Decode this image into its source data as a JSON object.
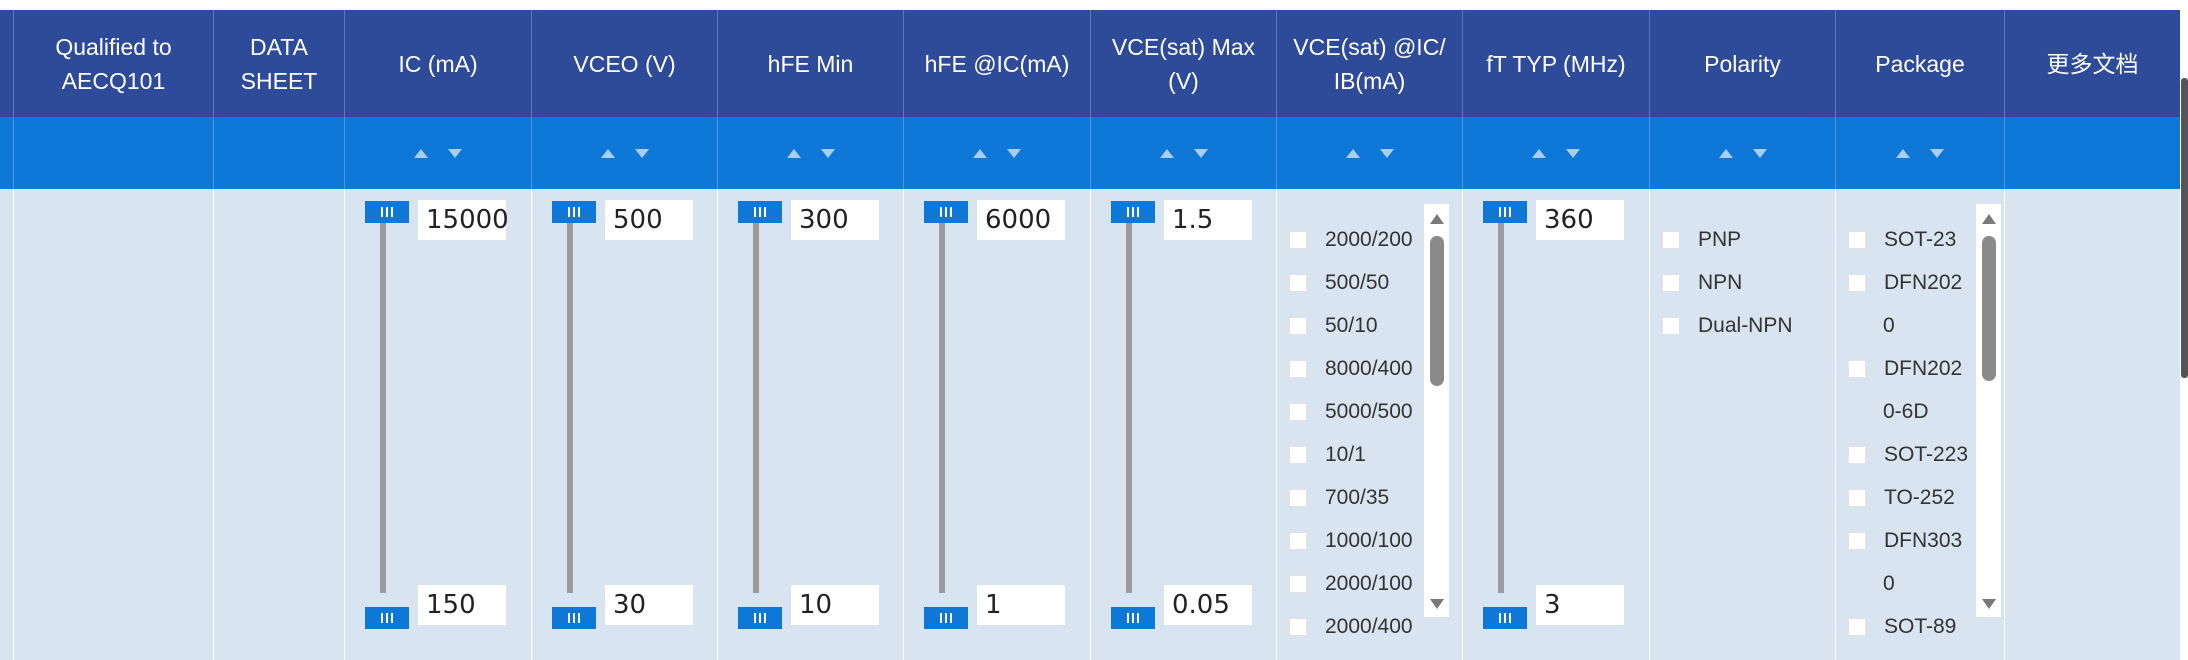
{
  "columns": {
    "qualified": "Qualified to\nAECQ101",
    "datasheet": "DATA\nSHEET",
    "ic": "IC (mA)",
    "vceo": "VCEO (V)",
    "hfe_min": "hFE Min",
    "hfe_ic": "hFE @IC(mA)",
    "vcesat_max": "VCE(sat) Max\n(V)",
    "vcesat_ic": "VCE(sat) @IC/\nIB(mA)",
    "ft": "fT TYP (MHz)",
    "polarity": "Polarity",
    "package": "Package",
    "more_docs": "更多文档"
  },
  "sliders": {
    "ic": {
      "max": "15000",
      "min": "150"
    },
    "vceo": {
      "max": "500",
      "min": "30"
    },
    "hfe_min": {
      "max": "300",
      "min": "10"
    },
    "hfe_ic": {
      "max": "6000",
      "min": "1"
    },
    "vcesat_max": {
      "max": "1.5",
      "min": "0.05"
    },
    "ft": {
      "max": "360",
      "min": "3"
    }
  },
  "vcesat_options": [
    "2000/200",
    "500/50",
    "50/10",
    "8000/400",
    "5000/500",
    "10/1",
    "700/35",
    "1000/100",
    "2000/100",
    "2000/400"
  ],
  "polarity_options": [
    "PNP",
    "NPN",
    "Dual-NPN"
  ],
  "package_options": [
    "SOT-23",
    "DFN202",
    "0",
    "DFN202",
    "0-6D",
    "SOT-223",
    "TO-252",
    "DFN303",
    "0",
    "SOT-89"
  ],
  "colors": {
    "header": "#2e4b9a",
    "sort_bar": "#0e78d8",
    "body": "#d8e4ef"
  }
}
